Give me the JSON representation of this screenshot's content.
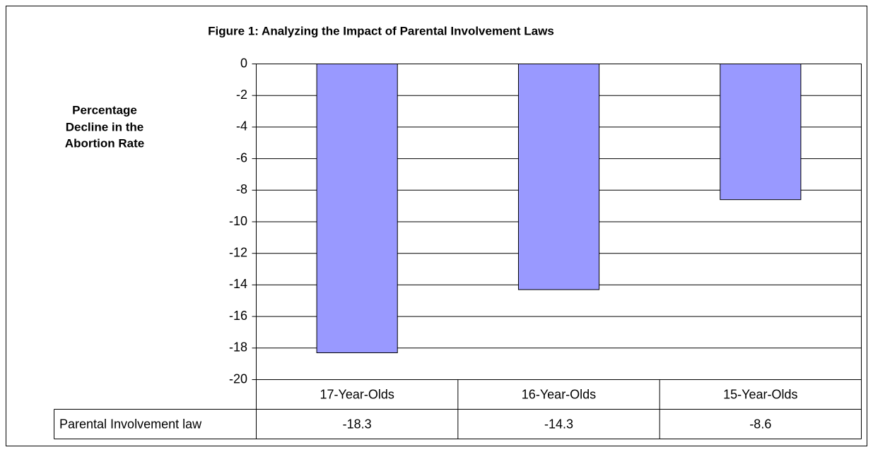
{
  "chart_data": {
    "type": "bar",
    "title": "Figure 1: Analyzing the Impact of Parental Involvement Laws",
    "y_label": [
      "Percentage",
      "Decline in the",
      "Abortion Rate"
    ],
    "categories": [
      "17-Year-Olds",
      "16-Year-Olds",
      "15-Year-Olds"
    ],
    "series": [
      {
        "name": "Parental Involvement law",
        "color": "#9999ff",
        "values": [
          -18.3,
          -14.3,
          -8.6
        ]
      }
    ],
    "ylim": [
      -20,
      0
    ],
    "yticks": [
      0,
      -2,
      -4,
      -6,
      -8,
      -10,
      -12,
      -14,
      -16,
      -18,
      -20
    ],
    "grid": true,
    "data_table": true
  }
}
